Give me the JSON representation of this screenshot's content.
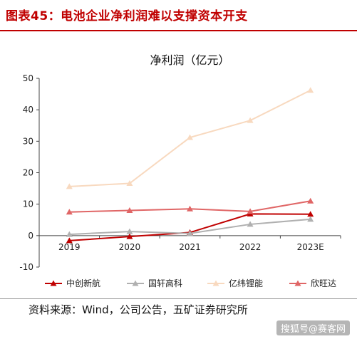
{
  "figure": {
    "title": "图表45：电池企业净利润难以支撑资本开支",
    "source": "资料来源：Wind，公司公告，五矿证券研究所",
    "watermark": "搜狐号@赛客网"
  },
  "chart_data": {
    "type": "line",
    "title": "净利润（亿元）",
    "categories": [
      "2019",
      "2020",
      "2021",
      "2022",
      "2023E"
    ],
    "ylim": [
      -10,
      50
    ],
    "yticks": [
      -10,
      0,
      10,
      20,
      30,
      40,
      50
    ],
    "series": [
      {
        "name": "中创新航",
        "color": "#c00000",
        "values": [
          -1.6,
          -0.3,
          1.0,
          6.9,
          6.8
        ]
      },
      {
        "name": "国轩高科",
        "color": "#b0b0b0",
        "values": [
          0.4,
          1.3,
          0.7,
          3.6,
          5.2
        ]
      },
      {
        "name": "亿纬锂能",
        "color": "#f8d9bf",
        "values": [
          15.6,
          16.6,
          31.2,
          36.6,
          46.2
        ]
      },
      {
        "name": "欣旺达",
        "color": "#e06666",
        "values": [
          7.5,
          8.0,
          8.5,
          7.7,
          11.0
        ]
      }
    ],
    "legend_position": "bottom",
    "grid": false
  }
}
